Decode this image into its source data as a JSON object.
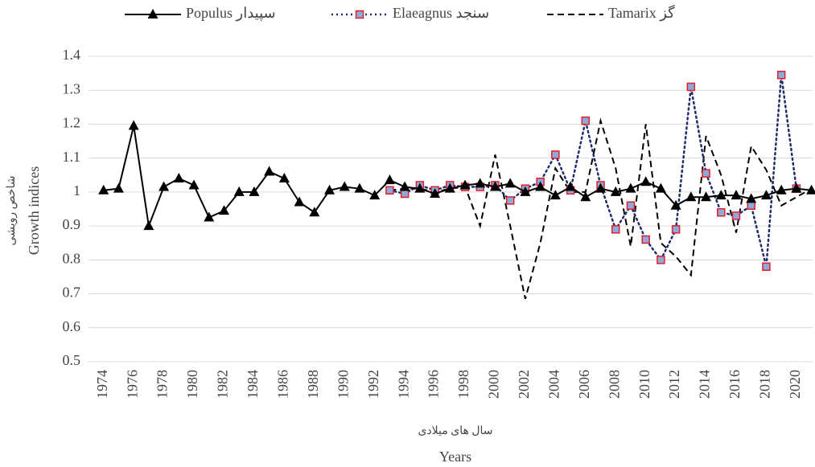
{
  "chart_data": {
    "type": "line",
    "ylabel": "Growth indices",
    "ylabel_fa": "شاخص رویشی",
    "xlabel": "Years",
    "xlabel_fa": "سال های میلادی",
    "x": [
      1974,
      1975,
      1976,
      1977,
      1978,
      1979,
      1980,
      1981,
      1982,
      1983,
      1984,
      1985,
      1986,
      1987,
      1988,
      1989,
      1990,
      1991,
      1992,
      1993,
      1994,
      1995,
      1996,
      1997,
      1998,
      1999,
      2000,
      2001,
      2002,
      2003,
      2004,
      2005,
      2006,
      2007,
      2008,
      2009,
      2010,
      2011,
      2012,
      2013,
      2014,
      2015,
      2016,
      2017,
      2018,
      2019,
      2020,
      2021
    ],
    "xlim": [
      1973,
      2021
    ],
    "xticks": [
      1974,
      1976,
      1978,
      1980,
      1982,
      1984,
      1986,
      1988,
      1990,
      1992,
      1994,
      1996,
      1998,
      2000,
      2002,
      2004,
      2006,
      2008,
      2010,
      2012,
      2014,
      2016,
      2018,
      2020
    ],
    "ylim": [
      0.5,
      1.4
    ],
    "yticks": [
      0.5,
      0.6,
      0.7,
      0.8,
      0.9,
      1,
      1.1,
      1.2,
      1.3,
      1.4
    ],
    "grid": true,
    "legend": "top",
    "series": [
      {
        "name": "Populus سپیدار",
        "color": "#000000",
        "dash": "solid",
        "marker": "triangle",
        "values": [
          1.005,
          1.01,
          1.195,
          0.9,
          1.015,
          1.04,
          1.02,
          0.925,
          0.945,
          1.0,
          1.0,
          1.06,
          1.04,
          0.97,
          0.94,
          1.005,
          1.015,
          1.01,
          0.99,
          1.035,
          1.015,
          1.01,
          0.995,
          1.01,
          1.02,
          1.025,
          1.015,
          1.025,
          1.0,
          1.015,
          0.99,
          1.015,
          0.985,
          1.01,
          1.0,
          1.01,
          1.03,
          1.01,
          0.96,
          0.985,
          0.985,
          0.99,
          0.99,
          0.98,
          0.99,
          1.005,
          1.01,
          1.005
        ]
      },
      {
        "name": "Elaeagnus سنجد",
        "color": "#1f2d6b",
        "dash": "dotted",
        "marker": "square",
        "values": [
          null,
          null,
          null,
          null,
          null,
          null,
          null,
          null,
          null,
          null,
          null,
          null,
          null,
          null,
          null,
          null,
          null,
          null,
          null,
          1.005,
          0.995,
          1.02,
          1.005,
          1.02,
          1.015,
          1.015,
          1.02,
          0.975,
          1.01,
          1.03,
          1.11,
          1.005,
          1.21,
          1.02,
          0.89,
          0.96,
          0.86,
          0.8,
          0.89,
          1.31,
          1.055,
          0.94,
          0.93,
          0.96,
          0.78,
          1.345,
          1.01,
          null
        ]
      },
      {
        "name": "Tamarix گز",
        "color": "#000000",
        "dash": "dashed",
        "marker": "none",
        "values": [
          null,
          null,
          null,
          null,
          null,
          null,
          null,
          null,
          null,
          null,
          null,
          null,
          null,
          null,
          null,
          null,
          null,
          null,
          null,
          1.005,
          1.01,
          1.01,
          1.0,
          1.01,
          1.015,
          0.9,
          1.11,
          0.9,
          0.685,
          0.85,
          1.07,
          1.0,
          1.0,
          1.21,
          1.07,
          0.84,
          1.2,
          0.85,
          0.81,
          0.755,
          1.165,
          1.05,
          0.88,
          1.135,
          1.065,
          0.96,
          0.985,
          1.01
        ]
      }
    ]
  }
}
